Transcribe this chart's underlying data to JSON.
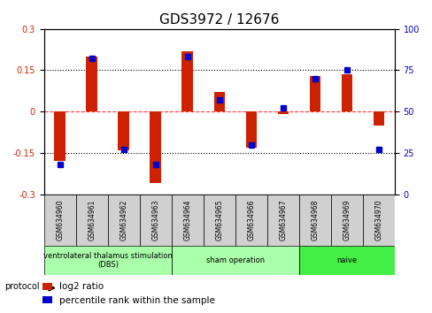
{
  "title": "GDS3972 / 12676",
  "samples": [
    "GSM634960",
    "GSM634961",
    "GSM634962",
    "GSM634963",
    "GSM634964",
    "GSM634965",
    "GSM634966",
    "GSM634967",
    "GSM634968",
    "GSM634969",
    "GSM634970"
  ],
  "log2_ratio": [
    -0.18,
    0.2,
    -0.14,
    -0.26,
    0.22,
    0.07,
    -0.13,
    -0.01,
    0.13,
    0.135,
    -0.05
  ],
  "percentile_rank": [
    18,
    82,
    27,
    18,
    83,
    57,
    30,
    52,
    70,
    75,
    27
  ],
  "groups": [
    {
      "label": "ventrolateral thalamus stimulation\n(DBS)",
      "start": 0,
      "end": 3,
      "color": "#90ee90"
    },
    {
      "label": "sham operation",
      "start": 4,
      "end": 7,
      "color": "#90ee90"
    },
    {
      "label": "naive",
      "start": 8,
      "end": 10,
      "color": "#00cc44"
    }
  ],
  "ylim_left": [
    -0.3,
    0.3
  ],
  "ylim_right": [
    0,
    100
  ],
  "yticks_left": [
    -0.3,
    -0.15,
    0,
    0.15,
    0.3
  ],
  "yticks_right": [
    0,
    25,
    50,
    75,
    100
  ],
  "bar_color_red": "#cc2200",
  "bar_color_blue": "#0000cc",
  "hline_colors": [
    "#ff4444",
    "#000000",
    "#000000"
  ],
  "hline_values": [
    0,
    0.15,
    -0.15
  ],
  "background_color": "#ffffff",
  "plot_bg": "#ffffff",
  "grid_color": "#000000",
  "title_fontsize": 11,
  "tick_fontsize": 7,
  "label_fontsize": 8,
  "group_label_fontsize": 8,
  "legend_fontsize": 7.5,
  "bar_width": 0.35,
  "group_light_green": "#aaffaa",
  "group_bright_green": "#44dd44"
}
